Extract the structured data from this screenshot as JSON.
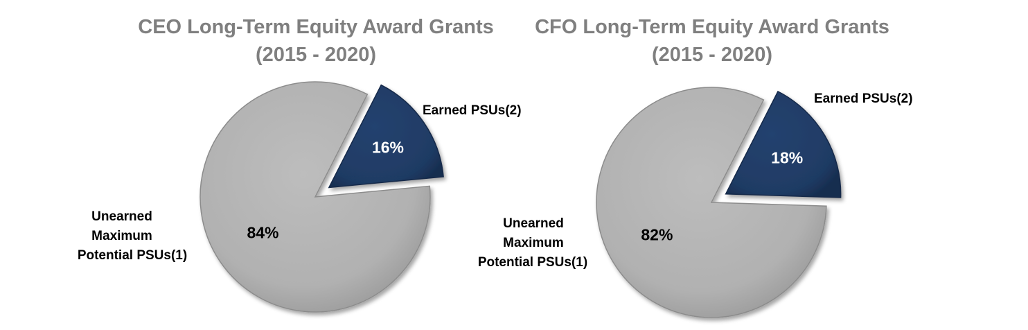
{
  "colors": {
    "title": "#7f7f7f",
    "earned": "#1f3b64",
    "earned_edge": "#16294a",
    "unearned": "#b0b0b0",
    "unearned_edge": "#8c8c8c",
    "earned_label": "#ffffff",
    "unearned_label": "#000000"
  },
  "chart_data": [
    {
      "type": "pie",
      "id": "ceo",
      "title": [
        "CEO Long-Term Equity Award Grants",
        "(2015 - 2020)"
      ],
      "slices": [
        {
          "key": "earned",
          "label": "Earned PSUs(2)",
          "label_lines": [
            "Earned PSUs(2)"
          ],
          "value": 16,
          "display": "16%",
          "exploded": true
        },
        {
          "key": "unearned",
          "label": "Unearned Maximum Potential PSUs(1)",
          "label_lines": [
            "Unearned",
            "Maximum",
            "Potential PSUs(1)"
          ],
          "value": 84,
          "display": "84%",
          "exploded": false
        }
      ]
    },
    {
      "type": "pie",
      "id": "cfo",
      "title": [
        "CFO Long-Term Equity Award Grants",
        "(2015 - 2020)"
      ],
      "slices": [
        {
          "key": "earned",
          "label": "Earned PSUs(2)",
          "label_lines": [
            "Earned PSUs(2)"
          ],
          "value": 18,
          "display": "18%",
          "exploded": true
        },
        {
          "key": "unearned",
          "label": "Unearned Maximum Potential PSUs(1)",
          "label_lines": [
            "Unearned",
            "Maximum",
            "Potential PSUs(1)"
          ],
          "value": 82,
          "display": "82%",
          "exploded": false
        }
      ]
    }
  ]
}
